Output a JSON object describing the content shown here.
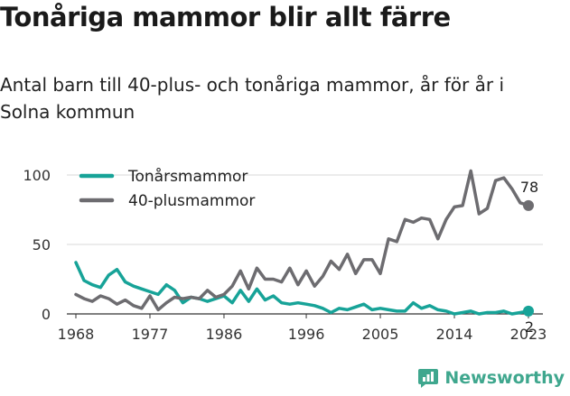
{
  "header": {
    "title": "Tonåriga mammor blir allt färre",
    "subtitle": "Antal barn till 40-plus- och tonåriga mammor, år för år i Solna kommun"
  },
  "logo": {
    "icon": "newsworthy-logo-icon",
    "text": "Newsworthy",
    "color": "#3fa78e"
  },
  "chart_data": {
    "type": "line",
    "title": "Tonåriga mammor blir allt färre",
    "subtitle": "Antal barn till 40-plus- och tonåriga mammor, år för år i Solna kommun",
    "xlabel": "",
    "ylabel": "",
    "xlim": [
      1968,
      2023
    ],
    "ylim": [
      0,
      100
    ],
    "x_ticks": [
      "1968",
      "1977",
      "1986",
      "1996",
      "2005",
      "2014",
      "2023"
    ],
    "y_ticks": [
      "0",
      "50",
      "100"
    ],
    "grid": "horizontal",
    "legend": "top-left",
    "x": [
      1968,
      1969,
      1970,
      1971,
      1972,
      1973,
      1974,
      1975,
      1976,
      1977,
      1978,
      1979,
      1980,
      1981,
      1982,
      1983,
      1984,
      1985,
      1986,
      1987,
      1988,
      1989,
      1990,
      1991,
      1992,
      1993,
      1994,
      1995,
      1996,
      1997,
      1998,
      1999,
      2000,
      2001,
      2002,
      2003,
      2004,
      2005,
      2006,
      2007,
      2008,
      2009,
      2010,
      2011,
      2012,
      2013,
      2014,
      2015,
      2016,
      2017,
      2018,
      2019,
      2020,
      2021,
      2022,
      2023
    ],
    "series": [
      {
        "name": "Tonårsmammor",
        "color": "#17a398",
        "end_label": "2",
        "values": [
          37,
          24,
          21,
          19,
          28,
          32,
          23,
          20,
          18,
          16,
          14,
          21,
          17,
          8,
          12,
          11,
          9,
          11,
          13,
          8,
          17,
          9,
          18,
          10,
          13,
          8,
          7,
          8,
          7,
          6,
          4,
          1,
          4,
          3,
          5,
          7,
          3,
          4,
          3,
          2,
          2,
          8,
          4,
          6,
          3,
          2,
          0,
          1,
          2,
          0,
          1,
          1,
          2,
          0,
          1,
          2
        ]
      },
      {
        "name": "40-plusmammor",
        "color": "#6d6c70",
        "end_label": "78",
        "values": [
          14,
          11,
          9,
          13,
          11,
          7,
          10,
          6,
          4,
          13,
          3,
          8,
          12,
          11,
          12,
          11,
          17,
          12,
          14,
          20,
          31,
          18,
          33,
          25,
          25,
          23,
          33,
          21,
          31,
          20,
          27,
          38,
          32,
          43,
          29,
          39,
          39,
          29,
          54,
          52,
          68,
          66,
          69,
          68,
          54,
          68,
          77,
          78,
          103,
          72,
          76,
          96,
          98,
          90,
          80,
          78
        ]
      }
    ]
  }
}
